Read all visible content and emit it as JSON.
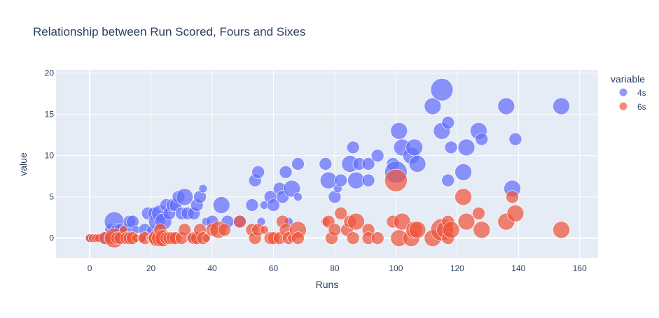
{
  "chart_data": {
    "type": "scatter",
    "title": "Relationship between Run Scored, Fours and Sixes",
    "xlabel": "Runs",
    "ylabel": "value",
    "xlim": [
      -11,
      166
    ],
    "ylim": [
      -2.4,
      20.4
    ],
    "xticks": [
      0,
      20,
      40,
      60,
      80,
      100,
      120,
      140,
      160
    ],
    "yticks": [
      0,
      5,
      10,
      15,
      20
    ],
    "grid": true,
    "legend_title": "variable",
    "legend_position": "right",
    "series": [
      {
        "name": "4s",
        "color": "#636efa",
        "points": [
          [
            0,
            0
          ],
          [
            1,
            0
          ],
          [
            2,
            0
          ],
          [
            3,
            0
          ],
          [
            5,
            0
          ],
          [
            7,
            1
          ],
          [
            8,
            2
          ],
          [
            9,
            1
          ],
          [
            10,
            1
          ],
          [
            11,
            0
          ],
          [
            12,
            1
          ],
          [
            13,
            2
          ],
          [
            14,
            2
          ],
          [
            15,
            1
          ],
          [
            17,
            0
          ],
          [
            18,
            1
          ],
          [
            19,
            3
          ],
          [
            20,
            1
          ],
          [
            21,
            3
          ],
          [
            22,
            2
          ],
          [
            23,
            3
          ],
          [
            24,
            2
          ],
          [
            25,
            4
          ],
          [
            26,
            3
          ],
          [
            27,
            4
          ],
          [
            28,
            4
          ],
          [
            29,
            5
          ],
          [
            30,
            3
          ],
          [
            31,
            5
          ],
          [
            32,
            3
          ],
          [
            33,
            0
          ],
          [
            34,
            3
          ],
          [
            35,
            4
          ],
          [
            36,
            5
          ],
          [
            37,
            6
          ],
          [
            38,
            2
          ],
          [
            40,
            2
          ],
          [
            43,
            4
          ],
          [
            45,
            2
          ],
          [
            49,
            2
          ],
          [
            53,
            4
          ],
          [
            54,
            7
          ],
          [
            55,
            8
          ],
          [
            56,
            2
          ],
          [
            57,
            4
          ],
          [
            59,
            5
          ],
          [
            60,
            4
          ],
          [
            62,
            6
          ],
          [
            63,
            5
          ],
          [
            64,
            8
          ],
          [
            65,
            2
          ],
          [
            66,
            6
          ],
          [
            68,
            9
          ],
          [
            68,
            5
          ],
          [
            77,
            9
          ],
          [
            78,
            7
          ],
          [
            80,
            5
          ],
          [
            81,
            6
          ],
          [
            82,
            7
          ],
          [
            85,
            9
          ],
          [
            86,
            11
          ],
          [
            87,
            7
          ],
          [
            88,
            9
          ],
          [
            91,
            7
          ],
          [
            91,
            9
          ],
          [
            94,
            10
          ],
          [
            99,
            9
          ],
          [
            100,
            8
          ],
          [
            101,
            13
          ],
          [
            102,
            11
          ],
          [
            105,
            10
          ],
          [
            106,
            11
          ],
          [
            107,
            9
          ],
          [
            112,
            16
          ],
          [
            115,
            18
          ],
          [
            115,
            13
          ],
          [
            117,
            7
          ],
          [
            117,
            14
          ],
          [
            118,
            11
          ],
          [
            122,
            8
          ],
          [
            123,
            11
          ],
          [
            127,
            13
          ],
          [
            128,
            12
          ],
          [
            136,
            16
          ],
          [
            138,
            6
          ],
          [
            139,
            12
          ],
          [
            154,
            16
          ]
        ],
        "sizes": [
          1,
          1,
          1,
          1,
          2,
          2,
          4,
          2,
          2,
          1,
          2,
          2,
          2,
          1,
          1,
          2,
          2,
          1,
          2,
          3,
          3,
          3,
          2,
          2,
          2,
          2,
          2,
          2,
          3,
          2,
          1,
          2,
          2,
          2,
          1,
          1,
          2,
          3,
          2,
          2,
          2,
          2,
          2,
          1,
          1,
          2,
          2,
          2,
          2,
          2,
          1,
          3,
          2,
          1,
          2,
          3,
          2,
          1,
          2,
          3,
          2,
          3,
          2,
          2,
          2,
          2,
          2,
          5,
          3,
          3,
          3,
          3,
          3,
          3,
          5,
          3,
          2,
          2,
          2,
          3,
          3,
          3,
          2,
          3,
          3,
          2,
          3
        ]
      },
      {
        "name": "6s",
        "color": "#ef553b",
        "points": [
          [
            0,
            0
          ],
          [
            1,
            0
          ],
          [
            2,
            0
          ],
          [
            3,
            0
          ],
          [
            5,
            0
          ],
          [
            7,
            0
          ],
          [
            8,
            0
          ],
          [
            9,
            0
          ],
          [
            10,
            0
          ],
          [
            11,
            1
          ],
          [
            12,
            0
          ],
          [
            13,
            0
          ],
          [
            14,
            0
          ],
          [
            15,
            0
          ],
          [
            17,
            0
          ],
          [
            18,
            0
          ],
          [
            20,
            0
          ],
          [
            21,
            0
          ],
          [
            22,
            0
          ],
          [
            23,
            0
          ],
          [
            23,
            1
          ],
          [
            24,
            0
          ],
          [
            25,
            0
          ],
          [
            26,
            0
          ],
          [
            27,
            0
          ],
          [
            28,
            0
          ],
          [
            30,
            0
          ],
          [
            31,
            1
          ],
          [
            33,
            0
          ],
          [
            34,
            0
          ],
          [
            35,
            0
          ],
          [
            36,
            1
          ],
          [
            37,
            0
          ],
          [
            38,
            0
          ],
          [
            40,
            1
          ],
          [
            42,
            1
          ],
          [
            44,
            1
          ],
          [
            49,
            2
          ],
          [
            53,
            1
          ],
          [
            54,
            0
          ],
          [
            55,
            1
          ],
          [
            57,
            1
          ],
          [
            59,
            0
          ],
          [
            60,
            0
          ],
          [
            62,
            0
          ],
          [
            63,
            2
          ],
          [
            64,
            1
          ],
          [
            65,
            0
          ],
          [
            66,
            0
          ],
          [
            68,
            1
          ],
          [
            68,
            0
          ],
          [
            77,
            2
          ],
          [
            78,
            2
          ],
          [
            79,
            0
          ],
          [
            80,
            1
          ],
          [
            82,
            3
          ],
          [
            84,
            1
          ],
          [
            85,
            2
          ],
          [
            86,
            0
          ],
          [
            87,
            2
          ],
          [
            91,
            1
          ],
          [
            91,
            0
          ],
          [
            94,
            0
          ],
          [
            99,
            2
          ],
          [
            100,
            7
          ],
          [
            101,
            0
          ],
          [
            102,
            2
          ],
          [
            105,
            0
          ],
          [
            106,
            1
          ],
          [
            107,
            1
          ],
          [
            112,
            0
          ],
          [
            115,
            1
          ],
          [
            116,
            1
          ],
          [
            117,
            2
          ],
          [
            117,
            0
          ],
          [
            118,
            1
          ],
          [
            122,
            5
          ],
          [
            123,
            2
          ],
          [
            127,
            3
          ],
          [
            128,
            1
          ],
          [
            136,
            2
          ],
          [
            138,
            5
          ],
          [
            139,
            3
          ],
          [
            154,
            1
          ]
        ],
        "sizes": [
          1,
          1,
          1,
          1,
          2,
          2,
          4,
          2,
          2,
          1,
          2,
          2,
          2,
          1,
          1,
          2,
          1,
          2,
          3,
          3,
          2,
          3,
          2,
          2,
          2,
          2,
          2,
          2,
          1,
          2,
          2,
          2,
          2,
          1,
          2,
          3,
          2,
          2,
          2,
          2,
          2,
          1,
          2,
          2,
          2,
          2,
          2,
          2,
          1,
          3,
          2,
          1,
          2,
          2,
          2,
          2,
          2,
          2,
          2,
          3,
          2,
          2,
          2,
          2,
          5,
          3,
          3,
          3,
          3,
          3,
          3,
          5,
          3,
          2,
          2,
          3,
          3,
          3,
          2,
          3,
          3,
          2,
          3,
          3
        ]
      }
    ]
  }
}
